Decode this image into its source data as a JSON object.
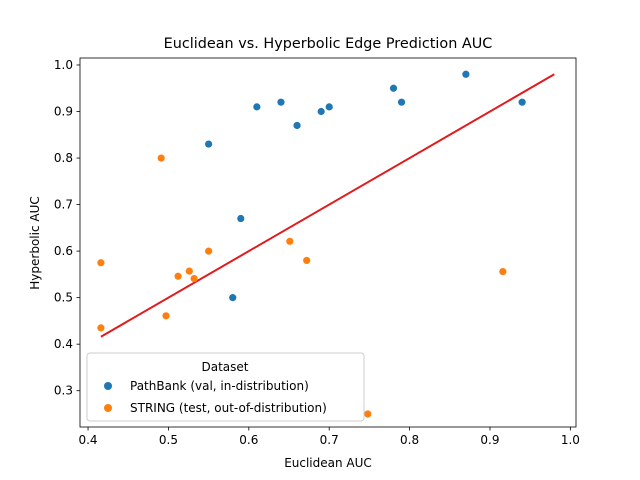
{
  "chart_data": {
    "type": "scatter",
    "title": "Euclidean vs. Hyperbolic Edge Prediction AUC",
    "xlabel": "Euclidean AUC",
    "ylabel": "Hyperbolic AUC",
    "xlim": [
      0.39,
      1.007
    ],
    "ylim": [
      0.222,
      1.015
    ],
    "xticks": [
      "0.4",
      "0.5",
      "0.6",
      "0.7",
      "0.8",
      "0.9",
      "1.0"
    ],
    "yticks": [
      "0.3",
      "0.4",
      "0.5",
      "0.6",
      "0.7",
      "0.8",
      "0.9",
      "1.0"
    ],
    "grid": false,
    "legend": {
      "title": "Dataset",
      "placement": "lower-left"
    },
    "series": [
      {
        "name": "PathBank (val, in-distribution)",
        "color": "#1f77b4",
        "points": [
          [
            0.55,
            0.83
          ],
          [
            0.58,
            0.5
          ],
          [
            0.59,
            0.67
          ],
          [
            0.61,
            0.91
          ],
          [
            0.64,
            0.92
          ],
          [
            0.66,
            0.87
          ],
          [
            0.69,
            0.9
          ],
          [
            0.7,
            0.91
          ],
          [
            0.78,
            0.95
          ],
          [
            0.79,
            0.92
          ],
          [
            0.87,
            0.98
          ],
          [
            0.94,
            0.92
          ]
        ]
      },
      {
        "name": "STRING (test, out-of-distribution)",
        "color": "#ff7f0e",
        "points": [
          [
            0.416,
            0.575
          ],
          [
            0.416,
            0.435
          ],
          [
            0.491,
            0.8
          ],
          [
            0.497,
            0.461
          ],
          [
            0.512,
            0.546
          ],
          [
            0.526,
            0.557
          ],
          [
            0.532,
            0.541
          ],
          [
            0.55,
            0.6
          ],
          [
            0.651,
            0.621
          ],
          [
            0.672,
            0.58
          ],
          [
            0.748,
            0.25
          ],
          [
            0.916,
            0.556
          ]
        ]
      }
    ],
    "fit_line": {
      "color": "#e31a1c",
      "points": [
        [
          0.416,
          0.416
        ],
        [
          0.98,
          0.98
        ]
      ]
    }
  }
}
